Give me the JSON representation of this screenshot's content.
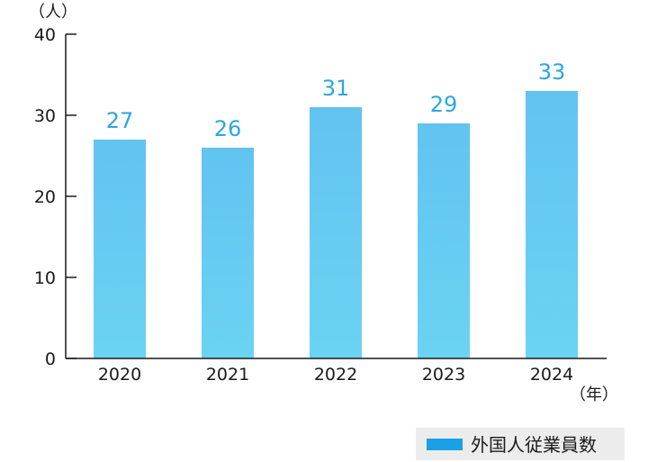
{
  "chart_data": {
    "type": "bar",
    "categories": [
      "2020",
      "2021",
      "2022",
      "2023",
      "2024"
    ],
    "series": [
      {
        "name": "外国人従業員数",
        "values": [
          27,
          26,
          31,
          29,
          33
        ]
      }
    ],
    "ylim": [
      0,
      40
    ],
    "yticks": [
      "0",
      "10",
      "20",
      "30",
      "40"
    ],
    "y_unit": "（人）",
    "x_unit": "（年）",
    "grid": false,
    "legend_position": "bottom-right",
    "colors": {
      "bar_top": "#62c3f0",
      "bar_bottom": "#6ad3f3",
      "value_label": "#2ca6e0",
      "legend_swatch": "#1aa0e6",
      "legend_box": "#ececec",
      "axis": "#1a1a1a"
    }
  }
}
